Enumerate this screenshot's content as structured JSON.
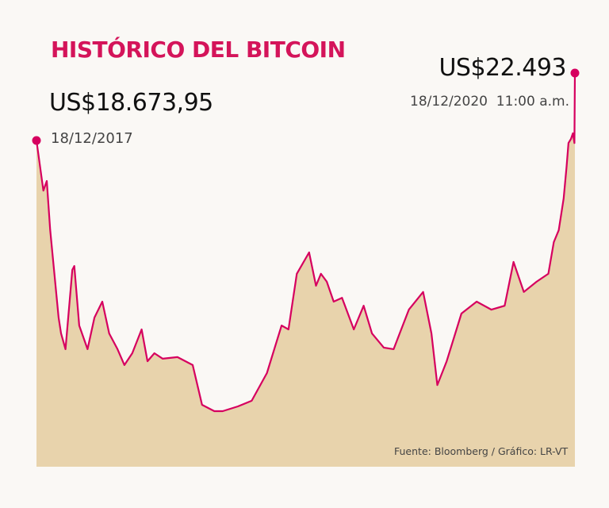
{
  "chart_data": {
    "type": "area",
    "title": "HISTÓRICO DEL BITCOIN",
    "source": "Fuente: Bloomberg / Gráfico: LR-VT",
    "annotations": {
      "start": {
        "value_label": "US$18.673,95",
        "date_label": "18/12/2017"
      },
      "end": {
        "value_label": "US$22.493",
        "date_label": "18/12/2020  11:00 a.m."
      }
    },
    "colors": {
      "line": "#d6005f",
      "fill": "#e8d3ac",
      "title": "#d4145a",
      "background": "#faf8f5"
    },
    "grid": false,
    "axes_visible": false,
    "x": [
      "2017-12-18",
      "2018-01-01",
      "2018-01-08",
      "2018-01-15",
      "2018-02-01",
      "2018-02-06",
      "2018-02-15",
      "2018-03-01",
      "2018-03-05",
      "2018-03-15",
      "2018-04-01",
      "2018-04-15",
      "2018-05-01",
      "2018-05-15",
      "2018-06-01",
      "2018-06-15",
      "2018-07-01",
      "2018-07-20",
      "2018-08-01",
      "2018-08-15",
      "2018-09-01",
      "2018-10-01",
      "2018-11-01",
      "2018-11-20",
      "2018-12-15",
      "2019-01-01",
      "2019-02-01",
      "2019-03-01",
      "2019-04-01",
      "2019-05-01",
      "2019-05-15",
      "2019-06-01",
      "2019-06-26",
      "2019-07-10",
      "2019-07-20",
      "2019-08-01",
      "2019-08-15",
      "2019-09-01",
      "2019-09-25",
      "2019-10-15",
      "2019-11-01",
      "2019-11-25",
      "2019-12-15",
      "2020-01-15",
      "2020-02-13",
      "2020-03-01",
      "2020-03-13",
      "2020-04-01",
      "2020-05-01",
      "2020-06-01",
      "2020-07-01",
      "2020-07-28",
      "2020-08-15",
      "2020-09-05",
      "2020-10-01",
      "2020-10-25",
      "2020-11-05",
      "2020-11-15",
      "2020-11-25",
      "2020-12-01",
      "2020-12-05",
      "2020-12-10",
      "2020-12-14",
      "2020-12-17",
      "2020-12-18"
    ],
    "values": [
      18674,
      15840,
      16380,
      13600,
      8650,
      7750,
      6860,
      11350,
      11570,
      8200,
      6860,
      8650,
      9550,
      7750,
      6860,
      5960,
      6630,
      7980,
      6180,
      6630,
      6320,
      6410,
      5960,
      3710,
      3350,
      3350,
      3620,
      3940,
      5510,
      8200,
      7980,
      11130,
      12340,
      10450,
      11130,
      10680,
      9550,
      9770,
      7980,
      9320,
      7750,
      6950,
      6860,
      9100,
      10100,
      7750,
      4830,
      6180,
      8880,
      9550,
      9100,
      9320,
      11800,
      10100,
      10680,
      11130,
      12920,
      13590,
      15390,
      17190,
      18530,
      18760,
      19080,
      18530,
      22493
    ],
    "ylim": [
      0,
      22493
    ],
    "xlabel": "",
    "ylabel": ""
  }
}
